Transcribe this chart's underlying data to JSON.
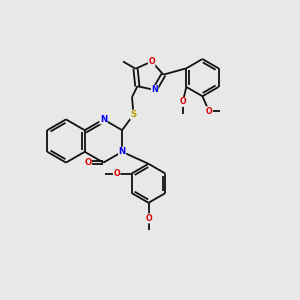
{
  "bg": "#e8e8e8",
  "bc": "#111111",
  "N_col": "#0000ee",
  "O_col": "#dd0000",
  "S_col": "#bb9900",
  "lw": 1.3,
  "fs": 6.2,
  "xlim": [
    0,
    10
  ],
  "ylim": [
    0,
    10
  ]
}
